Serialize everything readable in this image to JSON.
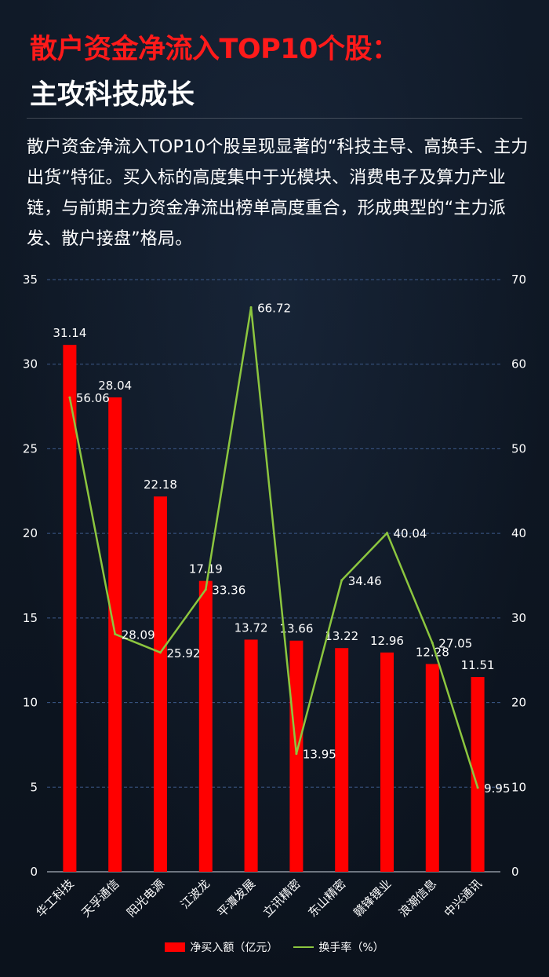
{
  "header": {
    "title_line1": "散户资金净流入TOP10个股：",
    "title_line2": "主攻科技成长"
  },
  "summary": "散户资金净流入TOP10个股呈现显著的“科技主导、高换手、主力出货”特征。买入标的高度集中于光模块、消费电子及算力产业链，与前期主力资金净流出榜单高度重合，形成典型的“主力派发、散户接盘”格局。",
  "colors": {
    "bar": "#ff0000",
    "line": "#8cc63f",
    "title_accent": "#ff1a1a",
    "background": "#0d1520"
  },
  "chart_data": {
    "type": "bar",
    "categories": [
      "华工科技",
      "天孚通信",
      "阳光电源",
      "江波龙",
      "平潭发展",
      "立讯精密",
      "东山精密",
      "赣锋锂业",
      "浪潮信息",
      "中兴通讯"
    ],
    "series": [
      {
        "name": "净买入额（亿元）",
        "type": "bar",
        "axis": "left",
        "values": [
          31.14,
          28.04,
          22.18,
          17.19,
          13.72,
          13.66,
          13.22,
          12.96,
          12.28,
          11.51
        ],
        "labels": [
          "31.14",
          "28.04",
          "22.18",
          "17.19",
          "13.72",
          "13.66",
          "13.22",
          "12.96",
          "12.28",
          "11.51"
        ]
      },
      {
        "name": "换手率（%）",
        "type": "line",
        "axis": "right",
        "values": [
          56.06,
          28.09,
          25.92,
          33.36,
          66.72,
          13.95,
          34.46,
          40.04,
          27.05,
          9.95
        ],
        "labels": [
          "56.06",
          "28.09",
          "25.92",
          "33.36",
          "66.72",
          "13.95",
          "34.46",
          "40.04",
          "27.05",
          "9.95"
        ]
      }
    ],
    "y_left": {
      "min": 0,
      "max": 35,
      "ticks": [
        "0",
        "5",
        "10",
        "15",
        "20",
        "25",
        "30",
        "35"
      ]
    },
    "y_right": {
      "min": 0,
      "max": 70,
      "ticks": [
        "0",
        "10",
        "20",
        "30",
        "40",
        "50",
        "60",
        "70"
      ]
    },
    "grid": true,
    "legend_position": "bottom-center"
  }
}
